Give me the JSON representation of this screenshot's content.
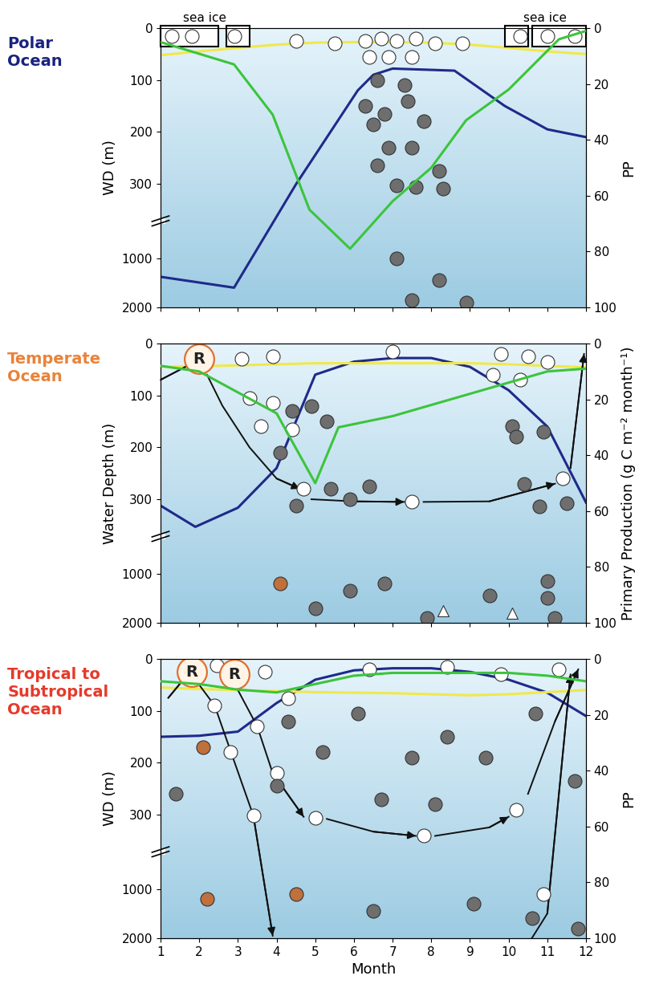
{
  "chart_data": [
    {
      "type": "line",
      "title": "Polar\nOcean",
      "y_label": "WD (m)",
      "y2_label": "PP",
      "xlim": [
        1,
        12
      ],
      "xticks": [
        1,
        2,
        3,
        4,
        5,
        6,
        7,
        8,
        9,
        10,
        11,
        12
      ],
      "ylim": [
        2000,
        0
      ],
      "yticks": [
        0,
        100,
        200,
        300,
        1000,
        2000
      ],
      "y2lim": [
        100,
        0
      ],
      "y2ticks": [
        0,
        20,
        40,
        60,
        80,
        100
      ],
      "tick_labels": "y",
      "sea_ice": [
        {
          "label": "sea ice",
          "spans": [
            [
              1.0,
              2.5
            ],
            [
              2.7,
              3.3
            ]
          ]
        },
        {
          "label": "sea ice",
          "spans": [
            [
              9.9,
              10.5
            ],
            [
              10.6,
              12.0
            ]
          ]
        }
      ],
      "series": [
        {
          "type": "line",
          "color": "#1f2a8a",
          "x": [
            1,
            2.9,
            4.5,
            6.1,
            6.5,
            7.0,
            8.6,
            9.9,
            11.0,
            12.0
          ],
          "values": [
            1380,
            1600,
            305,
            120,
            90,
            78,
            82,
            150,
            195,
            210
          ]
        },
        {
          "type": "line",
          "color": "#3cc43c",
          "axis": "y2",
          "x": [
            1,
            2.9,
            3.9,
            4.85,
            5.9,
            7.0,
            8.0,
            8.9,
            10.0,
            11.3,
            12.0
          ],
          "values": [
            5,
            13,
            31,
            65,
            79,
            62,
            50,
            33,
            22,
            4,
            1
          ]
        },
        {
          "type": "line",
          "color": "#f0e84a",
          "x": [
            1,
            2,
            3,
            4,
            5,
            6,
            7,
            8,
            9,
            10,
            11,
            12
          ],
          "values": [
            52,
            45,
            38,
            32,
            28,
            27,
            27,
            28,
            32,
            38,
            45,
            50
          ]
        },
        {
          "type": "scatter",
          "color": "#ffffff",
          "marker": "o",
          "x": [
            1.3,
            1.8,
            2.9,
            10.3,
            11.0,
            11.7,
            4.5,
            5.5,
            6.3,
            6.7,
            7.1,
            7.6,
            8.1,
            8.8,
            6.4,
            6.9,
            7.5
          ],
          "values": [
            15,
            15,
            15,
            15,
            15,
            15,
            25,
            30,
            25,
            20,
            25,
            20,
            30,
            30,
            55,
            55,
            55
          ]
        },
        {
          "type": "scatter",
          "color": "#6e6e6e",
          "marker": "o",
          "x": [
            6.6,
            7.3,
            6.3,
            6.8,
            7.4,
            7.8,
            6.5,
            6.9,
            7.5,
            6.6,
            8.2,
            7.1,
            7.6,
            8.3,
            7.1,
            8.2,
            7.5,
            8.9
          ],
          "values": [
            100,
            110,
            150,
            165,
            140,
            180,
            185,
            230,
            230,
            265,
            275,
            315,
            330,
            345,
            1000,
            1450,
            1850,
            1900
          ]
        }
      ]
    },
    {
      "type": "line",
      "title": "Temperate\nOcean",
      "y_label": "Water Depth (m)",
      "y2_label": "Primary Production (g C m⁻² month⁻¹)",
      "xlim": [
        1,
        12
      ],
      "xticks": [
        1,
        2,
        3,
        4,
        5,
        6,
        7,
        8,
        9,
        10,
        11,
        12
      ],
      "ylim": [
        2000,
        0
      ],
      "yticks": [
        0,
        100,
        200,
        300,
        1000,
        2000
      ],
      "y2lim": [
        100,
        0
      ],
      "y2ticks": [
        0,
        20,
        40,
        60,
        80,
        100
      ],
      "tick_labels": "y",
      "reproduction": [
        {
          "label": "R",
          "x": 2.0,
          "y": 30
        }
      ],
      "series": [
        {
          "type": "line",
          "color": "#1f2a8a",
          "x": [
            1,
            1.9,
            3,
            4,
            5,
            6,
            7,
            8,
            9,
            10,
            11,
            12
          ],
          "values": [
            360,
            560,
            380,
            240,
            60,
            35,
            28,
            28,
            45,
            90,
            160,
            330
          ]
        },
        {
          "type": "line",
          "color": "#3cc43c",
          "axis": "y2",
          "x": [
            1,
            2,
            4,
            5,
            5.6,
            7,
            8,
            9,
            10,
            11,
            12
          ],
          "values": [
            8,
            10,
            25,
            50,
            30,
            26,
            22,
            18,
            14,
            10,
            9
          ]
        },
        {
          "type": "line",
          "color": "#f0e84a",
          "x": [
            1,
            2,
            3,
            4,
            5,
            6,
            7,
            8,
            9,
            10,
            11,
            12
          ],
          "values": [
            45,
            44,
            42,
            40,
            38,
            38,
            38,
            38,
            38,
            40,
            43,
            46
          ]
        },
        {
          "type": "path",
          "color": "#111111",
          "x": [
            1.0,
            1.9
          ],
          "values": [
            70,
            35
          ]
        },
        {
          "type": "path",
          "color": "#111111",
          "x": [
            2.2,
            2.6,
            3.3,
            4.0,
            4.6
          ],
          "values": [
            60,
            120,
            200,
            260,
            280
          ]
        },
        {
          "type": "path",
          "color": "#111111",
          "x": [
            4.9,
            6.0,
            7.3
          ],
          "values": [
            300,
            320,
            325
          ]
        },
        {
          "type": "path",
          "color": "#111111",
          "x": [
            7.8,
            9.5,
            11.2
          ],
          "values": [
            325,
            320,
            270
          ]
        },
        {
          "type": "path",
          "color": "#111111",
          "x": [
            11.6,
            11.95
          ],
          "values": [
            240,
            20
          ]
        },
        {
          "type": "scatter",
          "color": "#ffffff",
          "marker": "o",
          "x": [
            3.1,
            3.9,
            3.3,
            3.9,
            3.6,
            4.4,
            7.0,
            9.8,
            10.5,
            9.6,
            10.3,
            11.0,
            4.7,
            7.5,
            11.4
          ],
          "values": [
            30,
            25,
            105,
            115,
            160,
            165,
            15,
            20,
            25,
            60,
            70,
            35,
            280,
            325,
            260
          ]
        },
        {
          "type": "scatter",
          "color": "#ffffff",
          "marker": "^",
          "x": [
            8.3,
            10.1
          ],
          "values": [
            1750,
            1800
          ]
        },
        {
          "type": "scatter",
          "color": "#6e6e6e",
          "marker": "o",
          "x": [
            4.4,
            4.1,
            5.4,
            5.3,
            5.9,
            4.5,
            5.9,
            5.0,
            6.8,
            7.9,
            9.5,
            11.0,
            11.2,
            10.1,
            10.9,
            11.5,
            10.8,
            11.0,
            4.9,
            6.4,
            10.2,
            10.4
          ],
          "values": [
            130,
            210,
            280,
            150,
            300,
            360,
            1350,
            1700,
            1200,
            1900,
            1450,
            1500,
            1900,
            160,
            170,
            340,
            370,
            1150,
            120,
            275,
            180,
            270
          ]
        },
        {
          "type": "scatter",
          "color": "#c0703c",
          "marker": "o",
          "x": [
            4.1
          ],
          "values": [
            1200
          ]
        }
      ]
    },
    {
      "type": "line",
      "title": "Tropical to\nSubtropical\nOcean",
      "y_label": "WD (m)",
      "y2_label": "PP",
      "x_label": "Month",
      "xlim": [
        1,
        12
      ],
      "xticks": [
        1,
        2,
        3,
        4,
        5,
        6,
        7,
        8,
        9,
        10,
        11,
        12
      ],
      "ylim": [
        2000,
        0
      ],
      "yticks": [
        0,
        100,
        200,
        300,
        1000,
        2000
      ],
      "y2lim": [
        100,
        0
      ],
      "y2ticks": [
        0,
        20,
        40,
        60,
        80,
        100
      ],
      "reproduction": [
        {
          "label": "R",
          "x": 1.8,
          "y": 25
        },
        {
          "label": "R",
          "x": 2.9,
          "y": 30
        }
      ],
      "series": [
        {
          "type": "line",
          "color": "#1f2a8a",
          "x": [
            1,
            2,
            3,
            4,
            5,
            6,
            7,
            8,
            9,
            10,
            11,
            12
          ],
          "values": [
            150,
            148,
            140,
            85,
            40,
            22,
            18,
            18,
            25,
            40,
            65,
            110
          ]
        },
        {
          "type": "line",
          "color": "#3cc43c",
          "axis": "y2",
          "x": [
            1,
            2,
            3,
            4,
            5,
            6,
            7,
            8,
            9,
            10,
            11,
            12
          ],
          "values": [
            8,
            9,
            11,
            12,
            9,
            6,
            5,
            5,
            5,
            5,
            6,
            8
          ]
        },
        {
          "type": "line",
          "color": "#f0e84a",
          "x": [
            1,
            2,
            3,
            4,
            5,
            6,
            7,
            8,
            9,
            10,
            11,
            12
          ],
          "values": [
            55,
            58,
            60,
            62,
            64,
            65,
            66,
            68,
            70,
            68,
            64,
            60
          ]
        },
        {
          "type": "path",
          "color": "#111111",
          "x": [
            1.2,
            1.7
          ],
          "values": [
            75,
            30
          ]
        },
        {
          "type": "path",
          "color": "#111111",
          "x": [
            2.0,
            2.4,
            2.8,
            3.4,
            3.9
          ],
          "values": [
            50,
            90,
            175,
            310,
            1950
          ]
        },
        {
          "type": "path",
          "color": "#111111",
          "x": [
            3.0,
            3.5,
            3.9,
            4.7
          ],
          "values": [
            60,
            130,
            220,
            320
          ]
        },
        {
          "type": "path",
          "color": "#111111",
          "x": [
            5.3,
            6.5,
            7.6
          ],
          "values": [
            340,
            460,
            500
          ]
        },
        {
          "type": "path",
          "color": "#111111",
          "x": [
            8.1,
            9.5,
            10.0
          ],
          "values": [
            500,
            420,
            320
          ]
        },
        {
          "type": "path",
          "color": "#111111",
          "x": [
            10.5,
            11.2,
            11.8
          ],
          "values": [
            260,
            120,
            20
          ]
        },
        {
          "type": "path",
          "color": "#111111",
          "x": [
            10.6,
            11.0,
            11.6
          ],
          "values": [
            2000,
            1500,
            30
          ]
        },
        {
          "type": "scatter",
          "color": "#ffffff",
          "marker": "o",
          "x": [
            2.45,
            3.7,
            4.3,
            6.4,
            8.4,
            9.8,
            11.3,
            5.0,
            7.8,
            10.2,
            2.4,
            2.8,
            3.5,
            4.0,
            3.4,
            10.9
          ],
          "values": [
            12,
            25,
            75,
            20,
            15,
            30,
            20,
            330,
            500,
            290,
            90,
            180,
            130,
            220,
            310,
            1100
          ]
        },
        {
          "type": "scatter",
          "color": "#6e6e6e",
          "marker": "o",
          "x": [
            1.4,
            6.1,
            4.3,
            5.2,
            7.5,
            9.4,
            6.7,
            8.1,
            10.7,
            11.7,
            8.4,
            4.0,
            9.1,
            10.6,
            6.5,
            11.8
          ],
          "values": [
            260,
            105,
            120,
            180,
            190,
            190,
            270,
            280,
            105,
            235,
            150,
            245,
            1300,
            1600,
            1450,
            1800
          ]
        },
        {
          "type": "scatter",
          "color": "#c0703c",
          "marker": "o",
          "x": [
            2.1,
            2.2,
            4.5
          ],
          "values": [
            170,
            1200,
            1100
          ]
        }
      ]
    }
  ]
}
